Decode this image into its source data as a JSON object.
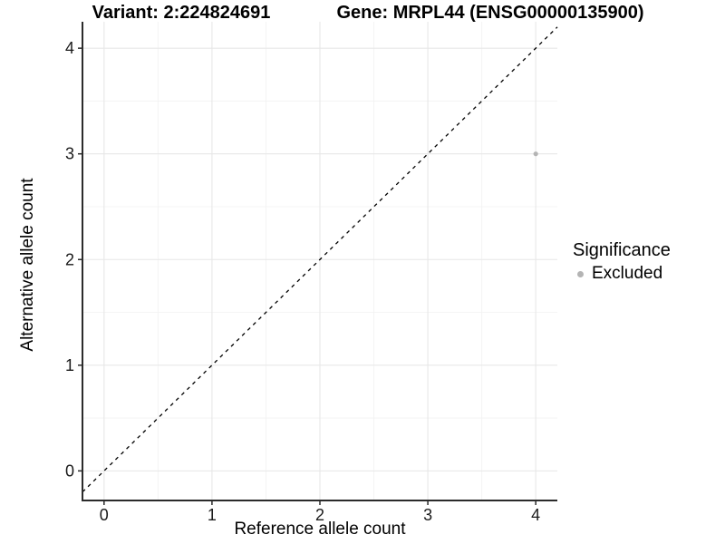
{
  "titles": {
    "variant": "Variant: 2:224824691",
    "gene": "Gene: MRPL44 (ENSG00000135900)"
  },
  "chart_data": {
    "type": "scatter",
    "title": "Variant: 2:224824691 | Gene: MRPL44 (ENSG00000135900)",
    "xlabel": "Reference allele count",
    "ylabel": "Alternative allele count",
    "xlim": [
      -0.2,
      4.2
    ],
    "ylim": [
      -0.28,
      4.25
    ],
    "xticks": [
      0,
      1,
      2,
      3,
      4
    ],
    "yticks": [
      0,
      1,
      2,
      3,
      4
    ],
    "xminor": [
      0.5,
      1.5,
      2.5,
      3.5
    ],
    "yminor": [
      0.5,
      1.5,
      2.5,
      3.5
    ],
    "grid": true,
    "points": [
      {
        "x": 4,
        "y": 3,
        "series": "Excluded"
      }
    ],
    "abline": {
      "slope": 1,
      "intercept": 0,
      "style": "dashed"
    },
    "legend": {
      "title": "Significance",
      "position": "right",
      "items": [
        {
          "label": "Excluded",
          "color": "#b4b4b4"
        }
      ]
    },
    "colors": {
      "point": "#b4b4b4",
      "grid_major": "#e7e7e7",
      "grid_minor": "#f2f2f2",
      "axis_line": "#2b2b2b",
      "tick_text": "#1a1a1a",
      "abline": "#000000",
      "background": "#ffffff"
    }
  }
}
